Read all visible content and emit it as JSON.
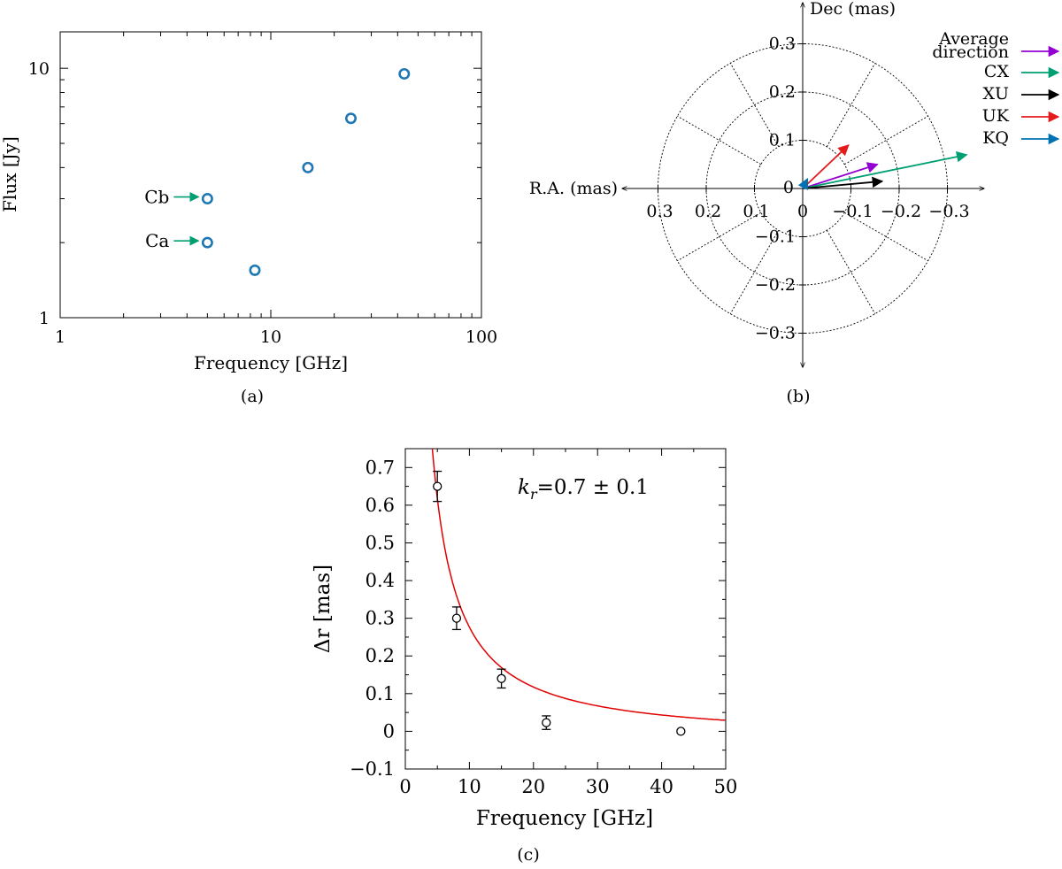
{
  "colors": {
    "flux_marker": "#1f77b4",
    "green": "#009e73",
    "purple": "#9400d3",
    "black": "#000000",
    "red": "#e41a1c",
    "blue": "#0072b2",
    "fit": "#e00000"
  },
  "chart_data": [
    {
      "type": "scatter",
      "caption": "(a)",
      "xlabel": "Frequency [GHz]",
      "ylabel": "Flux [Jy]",
      "xscale": "log",
      "yscale": "log",
      "xlim": [
        1,
        100
      ],
      "ylim": [
        1,
        14
      ],
      "x_tick_labels": [
        "1",
        "10",
        "100"
      ],
      "y_tick_labels": [
        "1",
        "10"
      ],
      "grid": false,
      "points": [
        {
          "x": 5,
          "y": 3.0
        },
        {
          "x": 5,
          "y": 2.0
        },
        {
          "x": 8.4,
          "y": 1.55
        },
        {
          "x": 15,
          "y": 4.0
        },
        {
          "x": 24,
          "y": 6.3
        },
        {
          "x": 43,
          "y": 9.5
        }
      ],
      "annotations": [
        {
          "label": "Cb",
          "x": 5,
          "y": 3.0
        },
        {
          "label": "Ca",
          "x": 5,
          "y": 2.0
        }
      ]
    },
    {
      "type": "polar-vectors",
      "caption": "(b)",
      "xlabel": "R.A. (mas)",
      "ylabel": "Dec (mas)",
      "ra_tick_labels": [
        "0.3",
        "0.2",
        "0.1",
        "0",
        "−0.1",
        "−0.2",
        "−0.3"
      ],
      "dec_tick_labels": [
        "0.3",
        "0.2",
        "0.1",
        "0",
        "−0.1",
        "−0.2",
        "−0.3"
      ],
      "circles": [
        0.1,
        0.2,
        0.3
      ],
      "vectors": [
        {
          "name": "Average direction",
          "ra": -0.155,
          "dec": 0.05,
          "color": "#9400d3"
        },
        {
          "name": "CX",
          "ra": -0.34,
          "dec": 0.07,
          "color": "#009e73"
        },
        {
          "name": "XU",
          "ra": -0.165,
          "dec": 0.015,
          "color": "#000000"
        },
        {
          "name": "UK",
          "ra": -0.095,
          "dec": 0.09,
          "color": "#e41a1c"
        },
        {
          "name": "KQ",
          "ra": -0.01,
          "dec": 0.02,
          "color": "#0072b2"
        }
      ],
      "legend_lines": [
        [
          "Average",
          "direction"
        ],
        [
          "CX"
        ],
        [
          "XU"
        ],
        [
          "UK"
        ],
        [
          "KQ"
        ]
      ],
      "legend_position": "right"
    },
    {
      "type": "scatter",
      "caption": "(c)",
      "xlabel": "Frequency [GHz]",
      "ylabel": "Δr [mas]",
      "xlim": [
        0,
        50
      ],
      "ylim": [
        -0.1,
        0.75
      ],
      "x_tick_labels": [
        "0",
        "10",
        "20",
        "30",
        "40",
        "50"
      ],
      "y_tick_labels": [
        "−0.1",
        "0",
        "0.1",
        "0.2",
        "0.3",
        "0.4",
        "0.5",
        "0.6",
        "0.7"
      ],
      "points": [
        {
          "x": 5,
          "y": 0.65,
          "err": 0.04
        },
        {
          "x": 8,
          "y": 0.3,
          "err": 0.03
        },
        {
          "x": 15,
          "y": 0.14,
          "err": 0.025
        },
        {
          "x": 22,
          "y": 0.023,
          "err": 0.018
        },
        {
          "x": 43,
          "y": 0.0,
          "err": 0.0
        }
      ],
      "annotation_k": "k",
      "annotation_sub": "r",
      "annotation_rest": "=0.7 ± 0.1",
      "fit": {
        "A": 3.75,
        "k": 1.1,
        "offset": -0.0215
      }
    }
  ]
}
